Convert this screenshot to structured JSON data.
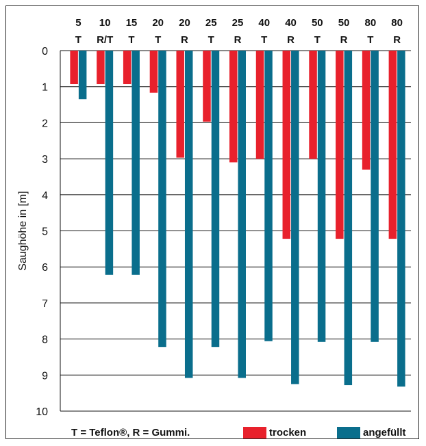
{
  "chart_data": {
    "type": "bar",
    "title": "",
    "ylabel": "Saughöhe in [m]",
    "xlabel": "",
    "y_axis": "inverted (0 at top, 10 at bottom)",
    "ylim": [
      0,
      10
    ],
    "yticks": [
      "0",
      "1",
      "2",
      "3",
      "4",
      "5",
      "6",
      "7",
      "8",
      "9",
      "10"
    ],
    "grid": true,
    "categories": [
      {
        "size": "5",
        "type": "T"
      },
      {
        "size": "10",
        "type": "R/T"
      },
      {
        "size": "15",
        "type": "T"
      },
      {
        "size": "20",
        "type": "T"
      },
      {
        "size": "20",
        "type": "R"
      },
      {
        "size": "25",
        "type": "T"
      },
      {
        "size": "25",
        "type": "R"
      },
      {
        "size": "40",
        "type": "T"
      },
      {
        "size": "40",
        "type": "R"
      },
      {
        "size": "50",
        "type": "T"
      },
      {
        "size": "50",
        "type": "R"
      },
      {
        "size": "80",
        "type": "T"
      },
      {
        "size": "80",
        "type": "R"
      }
    ],
    "series": [
      {
        "name": "trocken",
        "color": "#e8212c",
        "values": [
          0.93,
          0.93,
          0.93,
          1.17,
          2.97,
          1.97,
          3.1,
          3.0,
          5.22,
          3.0,
          5.22,
          3.3,
          5.22
        ]
      },
      {
        "name": "angefüllt",
        "color": "#0a6e8c",
        "values": [
          1.35,
          6.22,
          6.22,
          8.22,
          9.08,
          8.22,
          9.08,
          8.06,
          9.25,
          8.08,
          9.28,
          8.08,
          9.32
        ]
      }
    ],
    "legend_position": "bottom",
    "legend_note": "T = Teflon®, R = Gummi."
  }
}
